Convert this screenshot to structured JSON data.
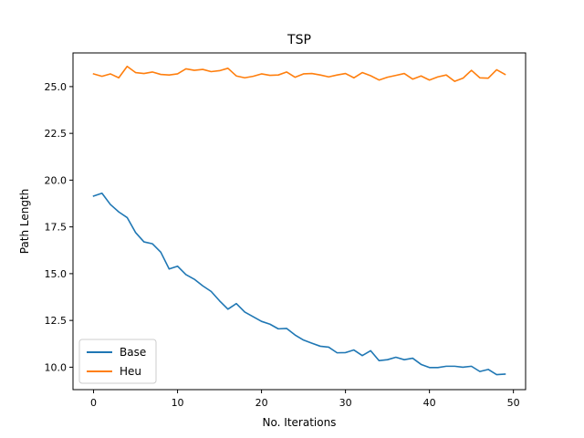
{
  "chart_data": {
    "type": "line",
    "title": "TSP",
    "xlabel": "No. Iterations",
    "ylabel": "Path Length",
    "xlim": [
      -2.45,
      51.45
    ],
    "ylim": [
      8.8,
      26.8
    ],
    "xticks": [
      0,
      10,
      20,
      30,
      40,
      50
    ],
    "xtick_labels": [
      "0",
      "10",
      "20",
      "30",
      "40",
      "50"
    ],
    "yticks": [
      10.0,
      12.5,
      15.0,
      17.5,
      20.0,
      22.5,
      25.0
    ],
    "ytick_labels": [
      "10.0",
      "12.5",
      "15.0",
      "17.5",
      "20.0",
      "22.5",
      "25.0"
    ],
    "grid": false,
    "legend_position": "lower-left",
    "x": [
      0,
      1,
      2,
      3,
      4,
      5,
      6,
      7,
      8,
      9,
      10,
      11,
      12,
      13,
      14,
      15,
      16,
      17,
      18,
      19,
      20,
      21,
      22,
      23,
      24,
      25,
      26,
      27,
      28,
      29,
      30,
      31,
      32,
      33,
      34,
      35,
      36,
      37,
      38,
      39,
      40,
      41,
      42,
      43,
      44,
      45,
      46,
      47,
      48,
      49
    ],
    "series": [
      {
        "name": "Base",
        "color": "#1f77b4",
        "values": [
          19.15,
          19.3,
          18.7,
          18.3,
          18.0,
          17.2,
          16.7,
          16.6,
          16.15,
          15.25,
          15.4,
          14.95,
          14.7,
          14.35,
          14.05,
          13.55,
          13.1,
          13.4,
          12.95,
          12.7,
          12.45,
          12.3,
          12.05,
          12.07,
          11.72,
          11.45,
          11.28,
          11.12,
          11.07,
          10.77,
          10.78,
          10.92,
          10.62,
          10.88,
          10.35,
          10.4,
          10.53,
          10.4,
          10.48,
          10.15,
          9.98,
          9.98,
          10.05,
          10.05,
          10.0,
          10.05,
          9.77,
          9.88,
          9.6,
          9.63
        ]
      },
      {
        "name": "Heu",
        "color": "#ff7f0e",
        "values": [
          25.68,
          25.55,
          25.68,
          25.47,
          26.08,
          25.75,
          25.7,
          25.78,
          25.65,
          25.62,
          25.68,
          25.95,
          25.87,
          25.92,
          25.8,
          25.85,
          25.98,
          25.57,
          25.47,
          25.55,
          25.68,
          25.6,
          25.62,
          25.78,
          25.5,
          25.68,
          25.7,
          25.62,
          25.52,
          25.62,
          25.7,
          25.47,
          25.75,
          25.58,
          25.35,
          25.5,
          25.6,
          25.7,
          25.4,
          25.57,
          25.35,
          25.52,
          25.62,
          25.28,
          25.45,
          25.87,
          25.47,
          25.45,
          25.9,
          25.65
        ]
      }
    ]
  }
}
